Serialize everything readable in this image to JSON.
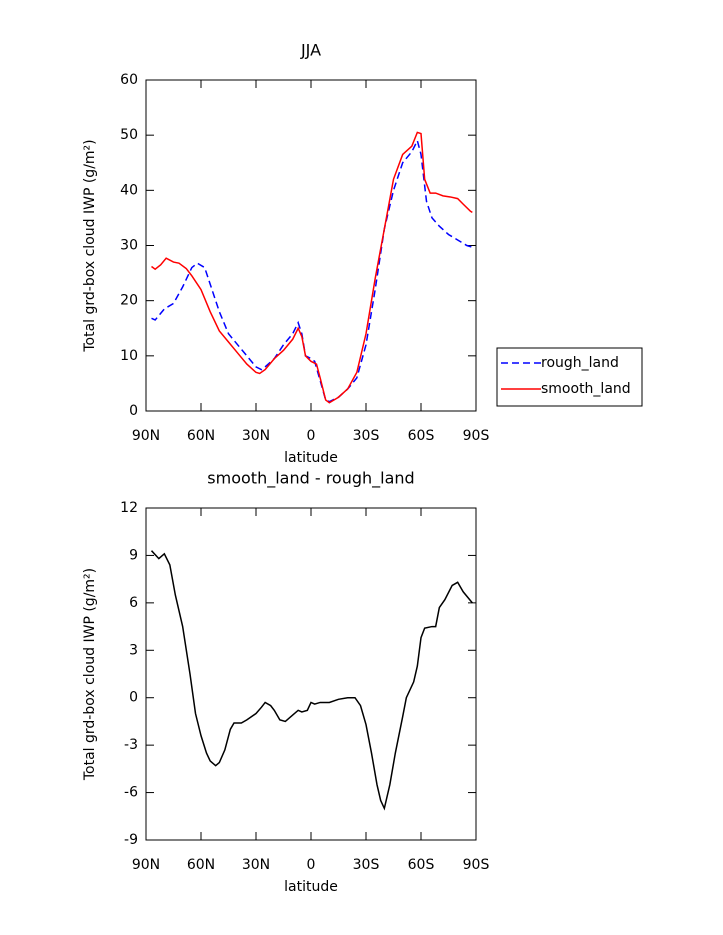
{
  "chart_data": [
    {
      "type": "line",
      "title": "JJA",
      "xlabel": "latitude",
      "ylabel": "Total grd-box cloud IWP (g/m²)",
      "xlim": [
        90,
        -90
      ],
      "xticks": [
        {
          "value": 90,
          "label": "90N"
        },
        {
          "value": 60,
          "label": "60N"
        },
        {
          "value": 30,
          "label": "30N"
        },
        0,
        {
          "value": -30,
          "label": "30S"
        },
        {
          "value": -60,
          "label": "60S"
        },
        {
          "value": -90,
          "label": "90S"
        }
      ],
      "ylim": [
        0,
        60
      ],
      "yticks": [
        0,
        10,
        20,
        30,
        40,
        50,
        60
      ],
      "legend": "right",
      "series": [
        {
          "name": "rough_land",
          "color": "#0000ff",
          "dash": true,
          "x": [
            87,
            85,
            80,
            75,
            70,
            65,
            62,
            58,
            55,
            50,
            45,
            40,
            35,
            30,
            27,
            25,
            20,
            15,
            10,
            7,
            5,
            3,
            0,
            -2,
            -5,
            -8,
            -10,
            -15,
            -20,
            -25,
            -30,
            -35,
            -40,
            -45,
            -50,
            -55,
            -58,
            -60,
            -63,
            -66,
            -70,
            -75,
            -80,
            -85,
            -88
          ],
          "values": [
            16.8,
            16.5,
            18.5,
            19.5,
            22.5,
            26,
            26.8,
            26,
            23,
            18,
            14,
            12,
            10,
            8,
            7.5,
            8,
            9.5,
            12,
            14,
            16,
            14,
            10,
            9.5,
            9,
            5.5,
            2,
            1.7,
            2.5,
            4,
            6,
            12,
            22,
            33,
            40,
            45,
            47,
            49,
            46.5,
            38,
            35,
            33.5,
            32,
            31,
            30,
            29.7
          ]
        },
        {
          "name": "smooth_land",
          "color": "#ff0000",
          "dash": false,
          "x": [
            87,
            85,
            82,
            79,
            75,
            72,
            68,
            65,
            60,
            55,
            50,
            45,
            40,
            35,
            30,
            28,
            25,
            20,
            15,
            10,
            7,
            5,
            3,
            0,
            -3,
            -5,
            -8,
            -10,
            -15,
            -20,
            -25,
            -30,
            -35,
            -40,
            -45,
            -50,
            -55,
            -58,
            -60,
            -62,
            -65,
            -68,
            -72,
            -76,
            -80,
            -83,
            -87,
            -88
          ],
          "values": [
            26.2,
            25.7,
            26.5,
            27.7,
            27,
            26.8,
            25.8,
            24.5,
            22,
            18,
            14.5,
            12.5,
            10.5,
            8.5,
            7,
            6.8,
            7.5,
            9.5,
            11,
            13,
            15,
            13.5,
            10,
            9,
            8.5,
            6,
            2,
            1.5,
            2.5,
            4,
            7,
            14,
            24,
            33,
            42,
            46.5,
            48,
            50.5,
            50.3,
            42,
            39.5,
            39.5,
            39,
            38.8,
            38.5,
            37.5,
            36.2,
            36
          ]
        }
      ]
    },
    {
      "type": "line",
      "title": "smooth_land - rough_land",
      "xlabel": "latitude",
      "ylabel": "Total grd-box cloud IWP (g/m²)",
      "xlim": [
        90,
        -90
      ],
      "xticks": [
        {
          "value": 90,
          "label": "90N"
        },
        {
          "value": 60,
          "label": "60N"
        },
        {
          "value": 30,
          "label": "30N"
        },
        0,
        {
          "value": -30,
          "label": "30S"
        },
        {
          "value": -60,
          "label": "60S"
        },
        {
          "value": -90,
          "label": "90S"
        }
      ],
      "ylim": [
        -9,
        12
      ],
      "yticks": [
        -9,
        -6,
        -3,
        0,
        3,
        6,
        9,
        12
      ],
      "series": [
        {
          "color": "#000000",
          "dash": false,
          "x": [
            87,
            83,
            80,
            77,
            74,
            70,
            66,
            63,
            60,
            57,
            55,
            52,
            50,
            47,
            44,
            42,
            38,
            35,
            30,
            27,
            25,
            22,
            20,
            17,
            14,
            10,
            7,
            5,
            2,
            0,
            -2,
            -5,
            -10,
            -15,
            -20,
            -24,
            -27,
            -30,
            -33,
            -36,
            -38,
            -40,
            -43,
            -46,
            -50,
            -52,
            -56,
            -58,
            -60,
            -62,
            -66,
            -68,
            -70,
            -73,
            -77,
            -80,
            -83,
            -88
          ],
          "values": [
            9.3,
            8.8,
            9.1,
            8.4,
            6.5,
            4.5,
            1.5,
            -1,
            -2.4,
            -3.5,
            -4,
            -4.3,
            -4.1,
            -3.3,
            -2,
            -1.6,
            -1.6,
            -1.4,
            -1,
            -0.6,
            -0.3,
            -0.5,
            -0.8,
            -1.4,
            -1.5,
            -1.1,
            -0.8,
            -0.9,
            -0.8,
            -0.3,
            -0.4,
            -0.3,
            -0.3,
            -0.1,
            0,
            0,
            -0.5,
            -1.7,
            -3.5,
            -5.5,
            -6.5,
            -7,
            -5.5,
            -3.5,
            -1.2,
            0,
            1,
            2,
            3.8,
            4.4,
            4.5,
            4.5,
            5.7,
            6.2,
            7.1,
            7.3,
            6.7,
            6.0
          ]
        }
      ]
    }
  ]
}
